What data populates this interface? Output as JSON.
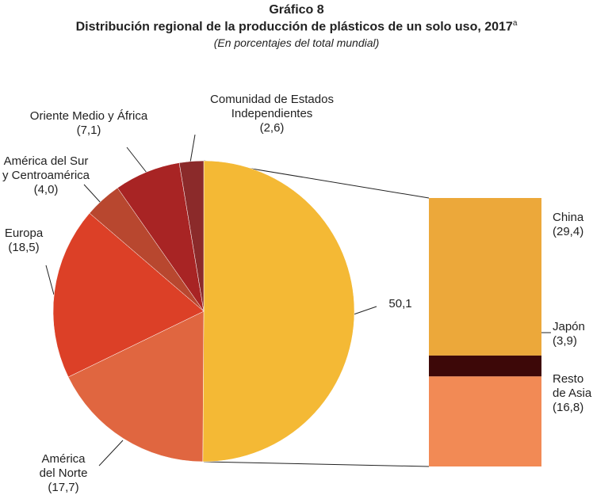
{
  "chart_data": {
    "type": "pie-of-bar",
    "title": "Gráfico 8",
    "subtitle": "Distribución regional de la producción de plásticos de un solo uso, 2017",
    "subtitle_note": "a",
    "caption": "(En porcentajes del total mundial)",
    "pie": {
      "categories": [
        "",
        "América\ndel Norte",
        "Europa",
        "América del Sur\ny Centroamérica",
        "Oriente Medio y África",
        "Comunidad de Estados\nIndependientes"
      ],
      "values": [
        50.1,
        17.7,
        18.5,
        4.0,
        7.1,
        2.6
      ],
      "value_labels": [
        "50,1",
        "(17,7)",
        "(18,5)",
        "(4,0)",
        "(7,1)",
        "(2,6)"
      ],
      "colors": [
        "#f4b935",
        "#e06640",
        "#dc4027",
        "#b8472f",
        "#a82424",
        "#8b2a2a"
      ]
    },
    "bar": {
      "categories": [
        "China",
        "Japón",
        "Resto\nde Asia"
      ],
      "values": [
        29.4,
        3.9,
        16.8
      ],
      "value_labels": [
        "(29,4)",
        "(3,9)",
        "(16,8)"
      ],
      "colors": [
        "#eca83a",
        "#3d0808",
        "#f28a55"
      ]
    }
  }
}
